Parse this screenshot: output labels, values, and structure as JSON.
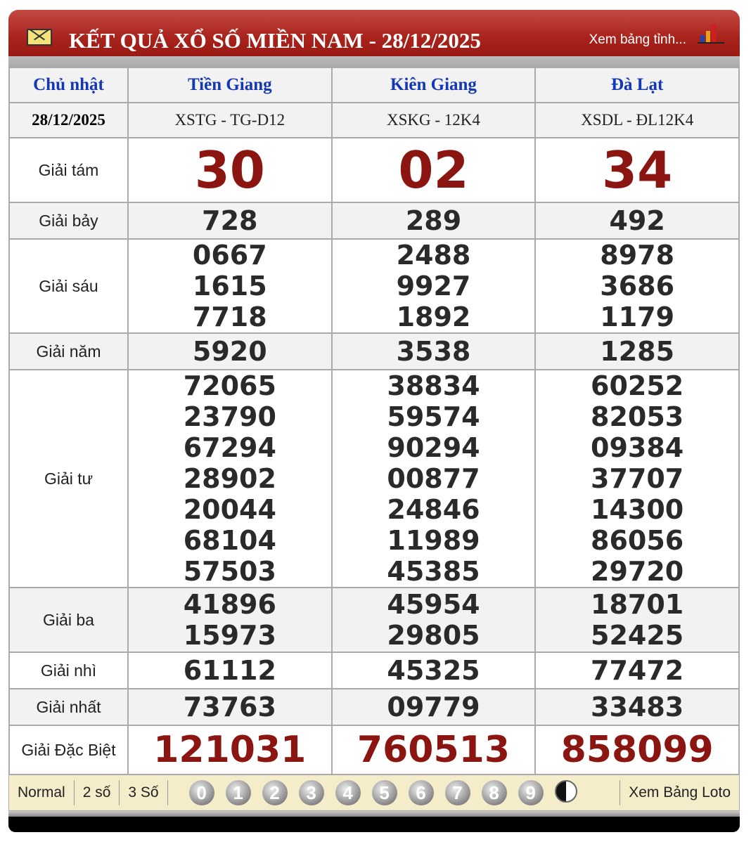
{
  "header": {
    "title": "KẾT QUẢ XỔ SỐ MIỀN NAM - 28/12/2025",
    "link": "Xem bảng tỉnh...",
    "icons": [
      "mail-icon",
      "bar-chart-icon"
    ]
  },
  "table": {
    "day": "Chủ nhật",
    "date": "28/12/2025",
    "provinces": [
      {
        "name": "Tiền Giang",
        "code": "XSTG - TG-D12"
      },
      {
        "name": "Kiên Giang",
        "code": "XSKG - 12K4"
      },
      {
        "name": "Đà Lạt",
        "code": "XSDL - ĐL12K4"
      }
    ],
    "prizes": [
      {
        "label": "Giải tám",
        "values": [
          [
            "30"
          ],
          [
            "02"
          ],
          [
            "34"
          ]
        ]
      },
      {
        "label": "Giải bảy",
        "values": [
          [
            "728"
          ],
          [
            "289"
          ],
          [
            "492"
          ]
        ]
      },
      {
        "label": "Giải sáu",
        "values": [
          [
            "0667",
            "1615",
            "7718"
          ],
          [
            "2488",
            "9927",
            "1892"
          ],
          [
            "8978",
            "3686",
            "1179"
          ]
        ]
      },
      {
        "label": "Giải năm",
        "values": [
          [
            "5920"
          ],
          [
            "3538"
          ],
          [
            "1285"
          ]
        ]
      },
      {
        "label": "Giải tư",
        "values": [
          [
            "72065",
            "23790",
            "67294",
            "28902",
            "20044",
            "68104",
            "57503"
          ],
          [
            "38834",
            "59574",
            "90294",
            "00877",
            "24846",
            "11989",
            "45385"
          ],
          [
            "60252",
            "82053",
            "09384",
            "37707",
            "14300",
            "86056",
            "29720"
          ]
        ]
      },
      {
        "label": "Giải ba",
        "values": [
          [
            "41896",
            "15973"
          ],
          [
            "45954",
            "29805"
          ],
          [
            "18701",
            "52425"
          ]
        ]
      },
      {
        "label": "Giải nhì",
        "values": [
          [
            "61112"
          ],
          [
            "45325"
          ],
          [
            "77472"
          ]
        ]
      },
      {
        "label": "Giải nhất",
        "values": [
          [
            "73763"
          ],
          [
            "09779"
          ],
          [
            "33483"
          ]
        ]
      },
      {
        "label": "Giải Đặc Biệt",
        "values": [
          [
            "121031"
          ],
          [
            "760513"
          ],
          [
            "858099"
          ]
        ]
      }
    ]
  },
  "footer": {
    "modes": [
      "Normal",
      "2 số",
      "3 Số"
    ],
    "digits": [
      "0",
      "1",
      "2",
      "3",
      "4",
      "5",
      "6",
      "7",
      "8",
      "9"
    ],
    "yin_yang_icon": "yin-yang-icon",
    "link": "Xem Bảng Loto"
  }
}
